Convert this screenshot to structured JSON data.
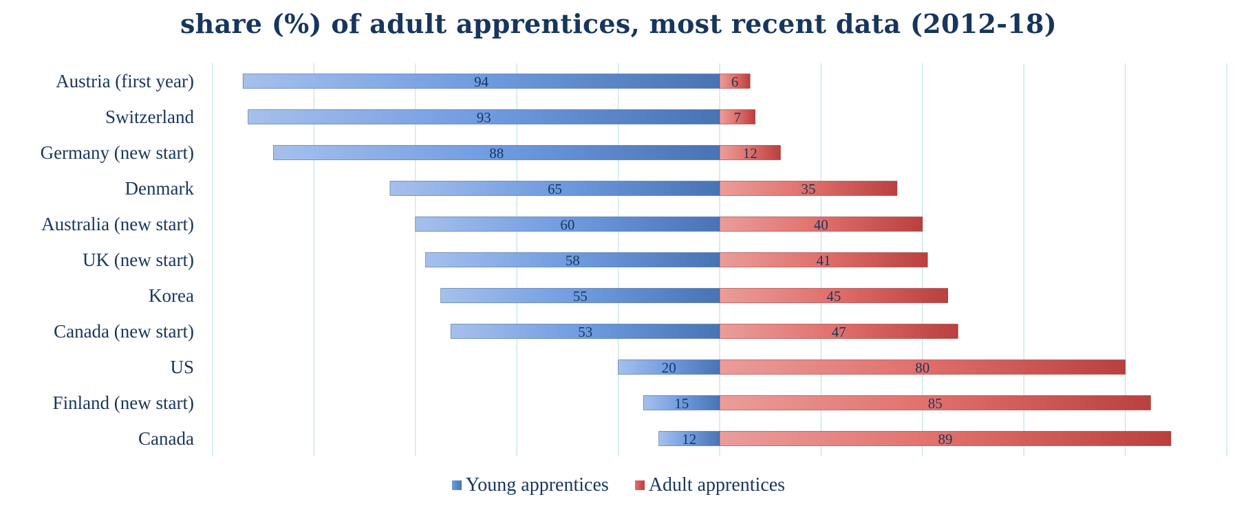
{
  "chart_data": {
    "type": "bar",
    "orientation": "horizontal-diverging",
    "title": "share (%) of adult apprentices, most recent data (2012-18)",
    "categories": [
      "Austria (first year)",
      "Switzerland",
      "Germany (new start)",
      "Denmark",
      "Australia (new start)",
      "UK (new start)",
      "Korea",
      "Canada (new start)",
      "US",
      "Finland (new start)",
      "Canada"
    ],
    "series": [
      {
        "name": "Young apprentices",
        "values": [
          94,
          93,
          88,
          65,
          60,
          58,
          55,
          53,
          20,
          15,
          12
        ],
        "color": "#4f81bd"
      },
      {
        "name": "Adult apprentices",
        "values": [
          6,
          7,
          12,
          35,
          40,
          41,
          45,
          47,
          80,
          85,
          89
        ],
        "color": "#c0504d"
      }
    ],
    "xlim": [
      -100,
      100
    ],
    "grid": true,
    "legend": "bottom"
  }
}
